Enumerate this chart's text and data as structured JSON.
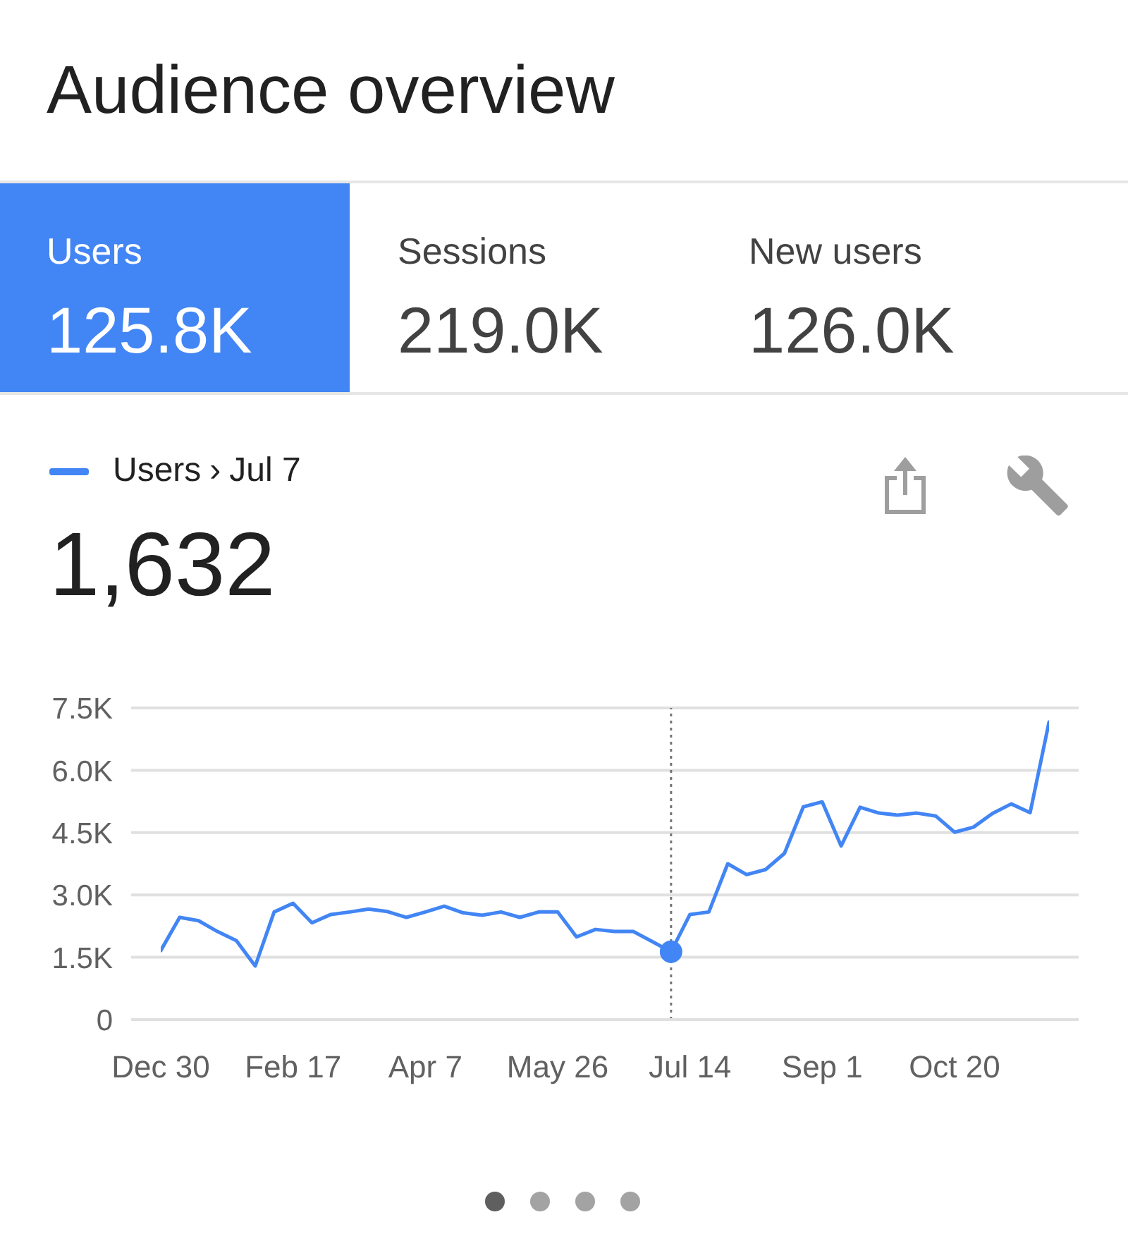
{
  "chart_data": {
    "type": "line",
    "title": "Audience overview",
    "categories": [
      "Dec 30",
      null,
      null,
      null,
      null,
      null,
      null,
      "Feb 17",
      null,
      null,
      null,
      null,
      null,
      null,
      "Apr 7",
      null,
      null,
      null,
      null,
      null,
      null,
      "May 26",
      null,
      null,
      null,
      null,
      null,
      null,
      "Jul 14",
      null,
      null,
      null,
      null,
      null,
      null,
      "Sep 1",
      null,
      null,
      null,
      null,
      null,
      null,
      "Oct 20",
      null,
      null,
      null,
      null,
      null
    ],
    "series": [
      {
        "name": "Users",
        "color": "#4285f4",
        "values": [
          1660,
          2460,
          2380,
          2120,
          1900,
          1290,
          2590,
          2800,
          2330,
          2530,
          2590,
          2660,
          2600,
          2460,
          2590,
          2730,
          2570,
          2510,
          2590,
          2460,
          2590,
          2590,
          1990,
          2170,
          2120,
          2120,
          1880,
          1632,
          2530,
          2590,
          3750,
          3490,
          3610,
          4000,
          5120,
          5240,
          4180,
          5110,
          4970,
          4920,
          4970,
          4900,
          4510,
          4630,
          4960,
          5190,
          4980,
          7160
        ]
      },
      {
        "type": "scatter",
        "color": "#4285f4",
        "marker": "circle",
        "values": [
          null,
          null,
          null,
          null,
          null,
          null,
          null,
          null,
          null,
          null,
          null,
          null,
          null,
          null,
          null,
          null,
          null,
          null,
          null,
          null,
          null,
          null,
          null,
          null,
          null,
          null,
          null,
          1632,
          null,
          null,
          null,
          null,
          null,
          null,
          null,
          null,
          null,
          null,
          null,
          null,
          null,
          null,
          null,
          null,
          null,
          null,
          null,
          null
        ]
      }
    ],
    "ylim": [
      0,
      7500
    ],
    "yticks": [
      0,
      {
        "value": 1500,
        "label": "1.5K"
      },
      {
        "value": 3000,
        "label": "3.0K"
      },
      {
        "value": 4500,
        "label": "4.5K"
      },
      {
        "value": 6000,
        "label": "6.0K"
      },
      {
        "value": 7500,
        "label": "7.5K"
      }
    ],
    "grid": "y",
    "legend": "top left",
    "ref_lines": [
      {
        "axis": "x",
        "value": "Jul 7",
        "line_style": "dotted",
        "color": "#757575"
      }
    ],
    "annotations": [
      "Users",
      "125.8K",
      "Sessions",
      "219.0K",
      "New users",
      "126.0K",
      "›",
      "1,632"
    ]
  }
}
